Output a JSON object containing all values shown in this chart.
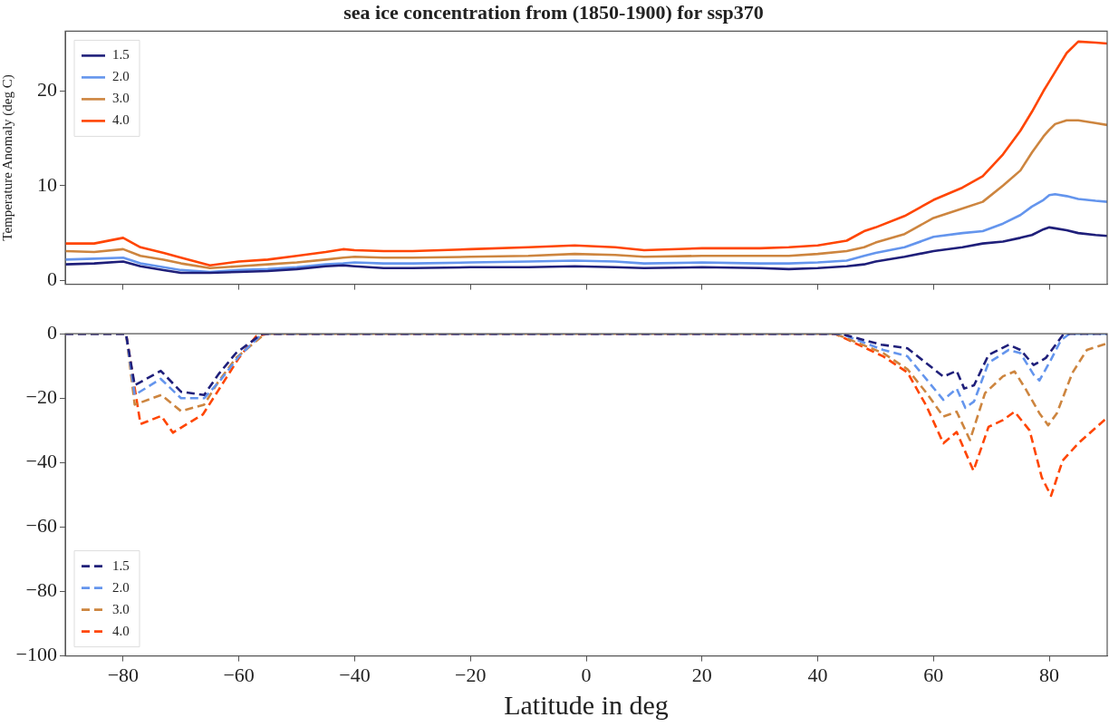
{
  "chart_data": [
    {
      "type": "line",
      "title": "sea ice concentration from (1850-1900) for ssp370",
      "ylabel": "Temperature Anomaly (deg C)",
      "xlim": [
        -90,
        90
      ],
      "ylim": [
        -0.4,
        26.3
      ],
      "yticks": [
        0,
        10,
        20
      ],
      "xticks": [
        {
          "value": -80,
          "label": null
        },
        {
          "value": -60,
          "label": null
        },
        {
          "value": -40,
          "label": null
        },
        {
          "value": -20,
          "label": null
        },
        {
          "value": 0,
          "label": null
        },
        {
          "value": 20,
          "label": null
        },
        {
          "value": 40,
          "label": null
        },
        {
          "value": 60,
          "label": null
        },
        {
          "value": 80,
          "label": null
        }
      ],
      "tick_labels": "y",
      "legend": "top left",
      "line_style": "solid",
      "x": [
        -90,
        -85,
        -80,
        -77,
        -73,
        -70,
        -65,
        -60,
        -55,
        -50,
        -45,
        -42,
        -40,
        -35,
        -30,
        -20,
        -10,
        -2,
        5,
        10,
        20,
        30,
        35,
        40,
        45,
        48,
        50,
        55,
        60,
        65,
        68.5,
        72,
        75,
        77,
        79,
        80,
        81,
        83,
        85,
        88,
        90
      ],
      "series": [
        {
          "name": "1.5",
          "color": "#1f1f7a",
          "values": [
            1.7,
            1.8,
            2.0,
            1.5,
            1.1,
            0.8,
            0.8,
            0.9,
            1.0,
            1.2,
            1.5,
            1.6,
            1.5,
            1.3,
            1.3,
            1.4,
            1.4,
            1.5,
            1.4,
            1.3,
            1.4,
            1.3,
            1.2,
            1.3,
            1.5,
            1.7,
            2.0,
            2.5,
            3.1,
            3.5,
            3.9,
            4.1,
            4.5,
            4.8,
            5.4,
            5.6,
            5.5,
            5.3,
            5.0,
            4.8,
            4.7
          ]
        },
        {
          "name": "2.0",
          "color": "#6495ed",
          "values": [
            2.2,
            2.3,
            2.4,
            1.8,
            1.4,
            1.1,
            0.9,
            1.1,
            1.2,
            1.4,
            1.7,
            1.8,
            1.9,
            1.8,
            1.8,
            1.9,
            2.0,
            2.1,
            2.0,
            1.8,
            1.9,
            1.8,
            1.8,
            1.9,
            2.1,
            2.6,
            2.9,
            3.5,
            4.6,
            5.0,
            5.2,
            6.0,
            6.9,
            7.8,
            8.5,
            9.0,
            9.1,
            8.9,
            8.6,
            8.4,
            8.3
          ]
        },
        {
          "name": "3.0",
          "color": "#cd853f",
          "values": [
            3.1,
            3.0,
            3.3,
            2.6,
            2.2,
            1.8,
            1.3,
            1.5,
            1.7,
            1.9,
            2.2,
            2.4,
            2.5,
            2.4,
            2.4,
            2.5,
            2.6,
            2.8,
            2.7,
            2.5,
            2.6,
            2.6,
            2.6,
            2.8,
            3.1,
            3.5,
            4.0,
            4.9,
            6.6,
            7.6,
            8.3,
            10.0,
            11.6,
            13.5,
            15.2,
            15.9,
            16.5,
            16.9,
            16.9,
            16.6,
            16.4
          ]
        },
        {
          "name": "4.0",
          "color": "#ff4500",
          "values": [
            3.9,
            3.9,
            4.5,
            3.5,
            2.9,
            2.4,
            1.6,
            2.0,
            2.2,
            2.6,
            3.0,
            3.3,
            3.2,
            3.1,
            3.1,
            3.3,
            3.5,
            3.7,
            3.5,
            3.2,
            3.4,
            3.4,
            3.5,
            3.7,
            4.2,
            5.2,
            5.6,
            6.8,
            8.5,
            9.8,
            11.0,
            13.3,
            15.8,
            17.8,
            20.0,
            21.0,
            22.0,
            24.0,
            25.2,
            25.1,
            25.0
          ]
        }
      ]
    },
    {
      "type": "line",
      "xlabel": "Latitude in deg",
      "xlim": [
        -90,
        90
      ],
      "ylim": [
        -100,
        0
      ],
      "yticks": [
        -100,
        -80,
        -60,
        -40,
        -20,
        0
      ],
      "xticks": [
        -80,
        -60,
        -40,
        -20,
        0,
        20,
        40,
        60,
        80
      ],
      "legend": "bottom left",
      "line_style": "dashed",
      "series": [
        {
          "name": "1.5",
          "color": "#1f1f7a",
          "x": [
            -90,
            -79.5,
            -78,
            -73.5,
            -70,
            -66,
            -63.5,
            -60.5,
            -56,
            44,
            51,
            55.5,
            61.7,
            64,
            65.3,
            67,
            69.5,
            73,
            75,
            77.3,
            79.4,
            82.5,
            90
          ],
          "values": [
            0,
            0,
            -16,
            -11.5,
            -18,
            -19,
            -12.5,
            -6,
            0,
            0,
            -3.4,
            -4.5,
            -13.3,
            -11.5,
            -17,
            -16,
            -6.6,
            -3.4,
            -5,
            -9.7,
            -7.5,
            0,
            0
          ]
        },
        {
          "name": "2.0",
          "color": "#6495ed",
          "x": [
            -90,
            -79.5,
            -78,
            -73.5,
            -70,
            -66,
            -63,
            -60,
            -56,
            44,
            51.3,
            55.5,
            61.7,
            64,
            65.5,
            67,
            69.5,
            73,
            75,
            77.3,
            78.3,
            80.3,
            82,
            83.5,
            90
          ],
          "values": [
            0,
            0,
            -19,
            -14,
            -20,
            -20,
            -14,
            -7,
            0,
            0,
            -5,
            -7,
            -20.5,
            -17,
            -23,
            -21,
            -9,
            -5,
            -6,
            -12.7,
            -14.5,
            -8,
            -2,
            0,
            0
          ]
        },
        {
          "name": "3.0",
          "color": "#cd853f",
          "x": [
            -90,
            -79.5,
            -78,
            -73.4,
            -70,
            -66,
            -63.6,
            -60.5,
            -55.5,
            43,
            51.3,
            55.5,
            58.8,
            61.7,
            64,
            66.3,
            68.9,
            72,
            74,
            76,
            78.3,
            79.8,
            81.3,
            84,
            86.5,
            90
          ],
          "values": [
            0,
            0,
            -22,
            -19,
            -24,
            -22,
            -15,
            -7.5,
            0,
            0,
            -6,
            -11,
            -18.4,
            -25.7,
            -24.2,
            -33,
            -18.4,
            -13.2,
            -11.7,
            -17.4,
            -24.7,
            -28.4,
            -24.7,
            -12.1,
            -5,
            -3
          ]
        },
        {
          "name": "4.0",
          "color": "#ff4500",
          "x": [
            -90,
            -79.5,
            -77,
            -73.4,
            -71.4,
            -66.2,
            -63.6,
            -60,
            -57,
            -55,
            43,
            51.3,
            55.5,
            58.8,
            61.7,
            64,
            66.9,
            69.5,
            72,
            74,
            76.6,
            78.7,
            80.3,
            82.3,
            85,
            90
          ],
          "values": [
            0,
            0,
            -28,
            -25.5,
            -30.7,
            -25,
            -17.7,
            -7.5,
            -0.7,
            0,
            0,
            -7,
            -12,
            -22.5,
            -34,
            -30.5,
            -42.5,
            -28.9,
            -26.8,
            -24.2,
            -30,
            -44.6,
            -50.3,
            -39.4,
            -34,
            -26
          ]
        }
      ]
    }
  ]
}
